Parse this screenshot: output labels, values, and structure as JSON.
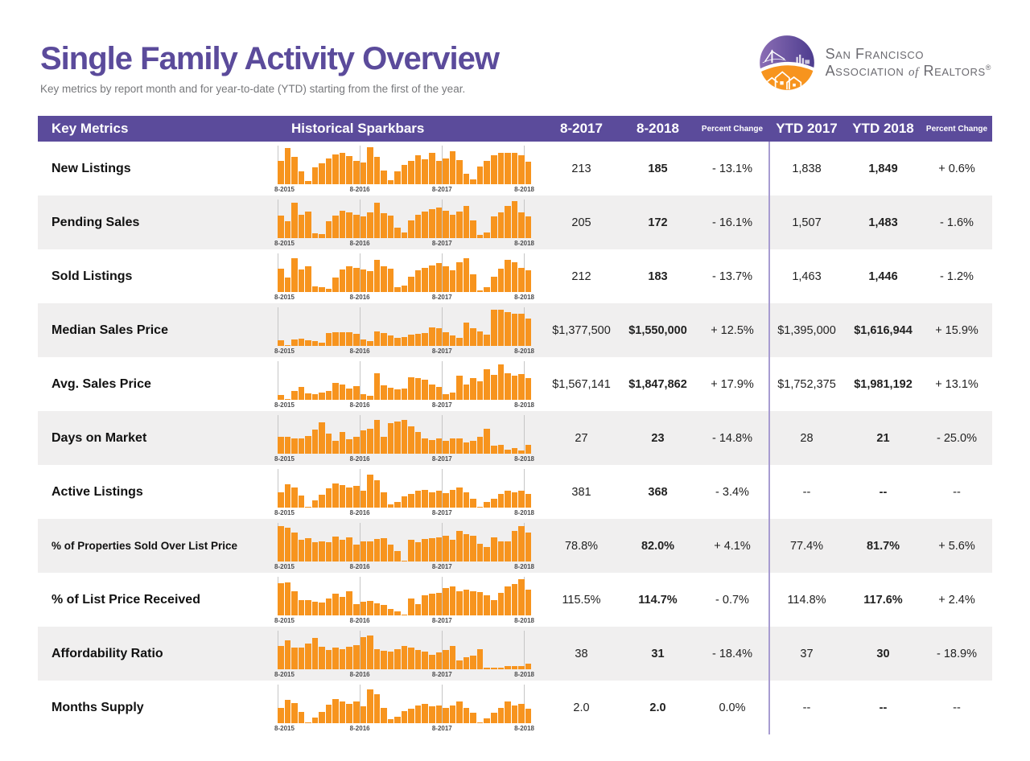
{
  "page": {
    "title": "Single Family Activity Overview",
    "subtitle": "Key metrics by report month and for year-to-date (YTD) starting from the first of the year."
  },
  "logo": {
    "line1": "San Francisco",
    "line2_a": "Association ",
    "line2_of": "of",
    "line2_b": " Realtors",
    "trademark": "®"
  },
  "colors": {
    "brand_purple": "#5b4b9b",
    "bar_orange": "#f7941e",
    "alt_row_gray": "#f0efef",
    "ytd_divider_purple": "#a89cd1"
  },
  "table": {
    "headers": {
      "key_metrics": "Key Metrics",
      "sparkbars": "Historical Sparkbars",
      "m2017": "8-2017",
      "m2018": "8-2018",
      "mchange": "Percent Change",
      "ytd2017": "YTD 2017",
      "ytd2018": "YTD 2018",
      "ytdchange": "Percent Change"
    },
    "sparkbar_axis": [
      "8-2015",
      "8-2016",
      "8-2017",
      "8-2018"
    ],
    "gridline_indices": [
      0,
      12,
      24,
      36
    ],
    "rows": [
      {
        "label": "New Listings",
        "m2017": "213",
        "m2018": "185",
        "mchange": "- 13.1%",
        "ytd2017": "1,838",
        "ytd2018": "1,849",
        "ytdchange": "+ 0.6%"
      },
      {
        "label": "Pending Sales",
        "m2017": "205",
        "m2018": "172",
        "mchange": "- 16.1%",
        "ytd2017": "1,507",
        "ytd2018": "1,483",
        "ytdchange": "- 1.6%"
      },
      {
        "label": "Sold Listings",
        "m2017": "212",
        "m2018": "183",
        "mchange": "- 13.7%",
        "ytd2017": "1,463",
        "ytd2018": "1,446",
        "ytdchange": "- 1.2%"
      },
      {
        "label": "Median Sales Price",
        "m2017": "$1,377,500",
        "m2018": "$1,550,000",
        "mchange": "+ 12.5%",
        "ytd2017": "$1,395,000",
        "ytd2018": "$1,616,944",
        "ytdchange": "+ 15.9%"
      },
      {
        "label": "Avg. Sales Price",
        "m2017": "$1,567,141",
        "m2018": "$1,847,862",
        "mchange": "+ 17.9%",
        "ytd2017": "$1,752,375",
        "ytd2018": "$1,981,192",
        "ytdchange": "+ 13.1%"
      },
      {
        "label": "Days on Market",
        "m2017": "27",
        "m2018": "23",
        "mchange": "- 14.8%",
        "ytd2017": "28",
        "ytd2018": "21",
        "ytdchange": "- 25.0%"
      },
      {
        "label": "Active Listings",
        "m2017": "381",
        "m2018": "368",
        "mchange": "- 3.4%",
        "ytd2017": "--",
        "ytd2018": "--",
        "ytdchange": "--"
      },
      {
        "label": "% of Properties Sold Over List Price",
        "m2017": "78.8%",
        "m2018": "82.0%",
        "mchange": "+ 4.1%",
        "ytd2017": "77.4%",
        "ytd2018": "81.7%",
        "ytdchange": "+ 5.6%"
      },
      {
        "label": "% of List Price Received",
        "m2017": "115.5%",
        "m2018": "114.7%",
        "mchange": "- 0.7%",
        "ytd2017": "114.8%",
        "ytd2018": "117.6%",
        "ytdchange": "+ 2.4%"
      },
      {
        "label": "Affordability Ratio",
        "m2017": "38",
        "m2018": "31",
        "mchange": "- 18.4%",
        "ytd2017": "37",
        "ytd2018": "30",
        "ytdchange": "- 18.9%"
      },
      {
        "label": "Months Supply",
        "m2017": "2.0",
        "m2018": "2.0",
        "mchange": "0.0%",
        "ytd2017": "--",
        "ytd2018": "--",
        "ytdchange": "--"
      }
    ]
  },
  "chart_data": [
    {
      "type": "bar",
      "metric": "New Listings",
      "x_ticks": [
        "8-2015",
        "8-2016",
        "8-2017",
        "8-2018"
      ],
      "unit": "relative-height-percent",
      "values": [
        62,
        97,
        73,
        35,
        8,
        45,
        57,
        70,
        80,
        84,
        76,
        64,
        58,
        100,
        74,
        38,
        10,
        35,
        52,
        62,
        78,
        68,
        85,
        62,
        70,
        90,
        66,
        28,
        12,
        48,
        62,
        78,
        85,
        84,
        85,
        78,
        61
      ]
    },
    {
      "type": "bar",
      "metric": "Pending Sales",
      "x_ticks": [
        "8-2015",
        "8-2016",
        "8-2017",
        "8-2018"
      ],
      "unit": "relative-height-percent",
      "values": [
        60,
        45,
        95,
        63,
        72,
        12,
        10,
        45,
        60,
        75,
        70,
        64,
        58,
        70,
        95,
        68,
        60,
        28,
        15,
        48,
        64,
        72,
        78,
        82,
        74,
        62,
        72,
        88,
        48,
        8,
        15,
        58,
        70,
        88,
        100,
        70,
        58
      ]
    },
    {
      "type": "bar",
      "metric": "Sold Listings",
      "x_ticks": [
        "8-2015",
        "8-2016",
        "8-2017",
        "8-2018"
      ],
      "unit": "relative-height-percent",
      "values": [
        62,
        40,
        92,
        60,
        70,
        15,
        12,
        8,
        40,
        60,
        70,
        66,
        60,
        56,
        88,
        70,
        64,
        12,
        18,
        42,
        58,
        66,
        72,
        78,
        70,
        58,
        80,
        92,
        48,
        5,
        12,
        42,
        62,
        88,
        80,
        66,
        58
      ]
    },
    {
      "type": "bar",
      "metric": "Median Sales Price",
      "x_ticks": [
        "8-2015",
        "8-2016",
        "8-2017",
        "8-2018"
      ],
      "unit": "relative-height-percent",
      "values": [
        15,
        2,
        18,
        20,
        15,
        12,
        8,
        35,
        38,
        38,
        36,
        33,
        18,
        12,
        40,
        35,
        28,
        22,
        25,
        30,
        32,
        35,
        50,
        48,
        38,
        28,
        22,
        62,
        48,
        40,
        30,
        98,
        97,
        92,
        88,
        88,
        75
      ]
    },
    {
      "type": "bar",
      "metric": "Avg. Sales Price",
      "x_ticks": [
        "8-2015",
        "8-2016",
        "8-2017",
        "8-2018"
      ],
      "unit": "relative-height-percent",
      "values": [
        12,
        3,
        25,
        35,
        18,
        15,
        20,
        25,
        45,
        42,
        30,
        38,
        15,
        10,
        72,
        40,
        32,
        28,
        30,
        60,
        58,
        55,
        42,
        35,
        15,
        20,
        65,
        42,
        58,
        50,
        82,
        68,
        95,
        72,
        65,
        70,
        58
      ]
    },
    {
      "type": "bar",
      "metric": "Days on Market",
      "x_ticks": [
        "8-2015",
        "8-2016",
        "8-2017",
        "8-2018"
      ],
      "unit": "relative-height-percent",
      "values": [
        45,
        45,
        42,
        42,
        48,
        65,
        85,
        55,
        35,
        58,
        40,
        45,
        62,
        68,
        92,
        45,
        82,
        88,
        92,
        75,
        58,
        42,
        38,
        42,
        35,
        42,
        42,
        30,
        35,
        45,
        68,
        22,
        25,
        10,
        15,
        8,
        25
      ]
    },
    {
      "type": "bar",
      "metric": "Active Listings",
      "x_ticks": [
        "8-2015",
        "8-2016",
        "8-2017",
        "8-2018"
      ],
      "unit": "relative-height-percent",
      "values": [
        42,
        62,
        55,
        32,
        3,
        20,
        35,
        52,
        65,
        60,
        55,
        58,
        45,
        90,
        75,
        42,
        8,
        15,
        30,
        38,
        45,
        48,
        42,
        45,
        40,
        48,
        55,
        42,
        25,
        3,
        15,
        25,
        38,
        45,
        42,
        45,
        38
      ]
    },
    {
      "type": "bar",
      "metric": "% of Properties Sold Over List Price",
      "x_ticks": [
        "8-2015",
        "8-2016",
        "8-2017",
        "8-2018"
      ],
      "unit": "relative-height-percent",
      "values": [
        95,
        92,
        78,
        58,
        62,
        52,
        55,
        52,
        68,
        58,
        65,
        45,
        55,
        55,
        60,
        62,
        45,
        28,
        3,
        58,
        52,
        60,
        62,
        65,
        70,
        58,
        82,
        75,
        70,
        48,
        40,
        65,
        55,
        55,
        82,
        95,
        78
      ]
    },
    {
      "type": "bar",
      "metric": "% of List Price Received",
      "x_ticks": [
        "8-2015",
        "8-2016",
        "8-2017",
        "8-2018"
      ],
      "unit": "relative-height-percent",
      "values": [
        88,
        90,
        65,
        42,
        42,
        38,
        35,
        45,
        58,
        50,
        65,
        30,
        38,
        40,
        32,
        28,
        18,
        10,
        3,
        45,
        30,
        55,
        58,
        60,
        75,
        78,
        65,
        70,
        65,
        62,
        55,
        42,
        60,
        78,
        85,
        98,
        70
      ]
    },
    {
      "type": "bar",
      "metric": "Affordability Ratio",
      "x_ticks": [
        "8-2015",
        "8-2016",
        "8-2017",
        "8-2018"
      ],
      "unit": "relative-height-percent",
      "values": [
        62,
        78,
        58,
        58,
        70,
        85,
        60,
        52,
        58,
        55,
        60,
        65,
        88,
        92,
        55,
        50,
        48,
        55,
        62,
        58,
        52,
        48,
        40,
        45,
        52,
        62,
        25,
        32,
        38,
        55,
        5,
        5,
        5,
        8,
        8,
        8,
        15
      ]
    },
    {
      "type": "bar",
      "metric": "Months Supply",
      "x_ticks": [
        "8-2015",
        "8-2016",
        "8-2017",
        "8-2018"
      ],
      "unit": "relative-height-percent",
      "values": [
        42,
        62,
        55,
        30,
        3,
        15,
        30,
        50,
        65,
        58,
        52,
        58,
        45,
        92,
        78,
        42,
        10,
        18,
        32,
        40,
        48,
        52,
        45,
        48,
        42,
        48,
        58,
        42,
        28,
        3,
        12,
        28,
        42,
        58,
        48,
        52,
        40
      ]
    }
  ]
}
